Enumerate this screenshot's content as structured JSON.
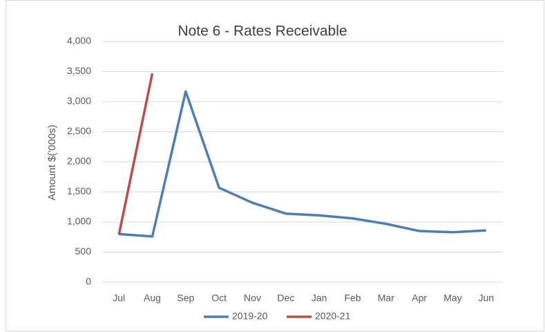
{
  "chart_data": {
    "type": "line",
    "title": "Note 6 - Rates Receivable",
    "y_label": "Amount $('000s)",
    "categories": [
      "Jul",
      "Aug",
      "Sep",
      "Oct",
      "Nov",
      "Dec",
      "Jan",
      "Feb",
      "Mar",
      "Apr",
      "May",
      "Jun"
    ],
    "series": [
      {
        "name": "2019-20",
        "color": "#4a7ebb",
        "values": [
          800,
          760,
          3170,
          1570,
          1320,
          1140,
          1110,
          1060,
          970,
          850,
          830,
          860
        ]
      },
      {
        "name": "2020-21",
        "color": "#be4b48",
        "values": [
          790,
          3470,
          null,
          null,
          null,
          null,
          null,
          null,
          null,
          null,
          null,
          null
        ]
      }
    ],
    "ylim": [
      0,
      4000
    ],
    "yticks": [
      0,
      500,
      {
        "value": 1000,
        "label": "1,000"
      },
      {
        "value": 1500,
        "label": "1,500"
      },
      {
        "value": 2000,
        "label": "2,000"
      },
      {
        "value": 2500,
        "label": "2,500"
      },
      {
        "value": 3000,
        "label": "3,000"
      },
      {
        "value": 3500,
        "label": "3,500"
      },
      {
        "value": 4000,
        "label": "4,000"
      }
    ],
    "grid": true,
    "legend": "bottom"
  }
}
